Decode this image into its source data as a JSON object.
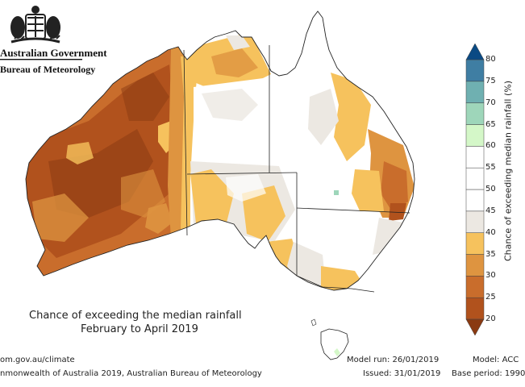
{
  "header": {
    "gov_line1": "Australian Government",
    "gov_line2": "Bureau of Meteorology"
  },
  "title": {
    "line1": "Chance of exceeding the median rainfall",
    "line2": "February to April 2019"
  },
  "footer": {
    "url": "om.gov.au/climate",
    "copyright": "nmonwealth of Australia 2019, Australian Bureau of Meteorology",
    "model_run": "Model run: 26/01/2019",
    "issued": "Issued: 31/01/2019",
    "model": "Model: ACC",
    "base_period": "Base period: 1990"
  },
  "legend": {
    "label": "Chance of exceeding median rainfall (%)",
    "ticks": [
      "80",
      "75",
      "70",
      "65",
      "60",
      "55",
      "50",
      "45",
      "40",
      "35",
      "30",
      "25",
      "20"
    ],
    "bands": [
      {
        "range": "<20",
        "color": "#8a3a12"
      },
      {
        "range": "20-25",
        "color": "#b1521d"
      },
      {
        "range": "25-30",
        "color": "#c96d2c"
      },
      {
        "range": "30-35",
        "color": "#de9440"
      },
      {
        "range": "35-40",
        "color": "#f6c25d"
      },
      {
        "range": "40-45",
        "color": "#ece8e2"
      },
      {
        "range": "45-50",
        "color": "#ffffff"
      },
      {
        "range": "50-55",
        "color": "#ffffff"
      },
      {
        "range": "55-60",
        "color": "#ffffff"
      },
      {
        "range": "60-65",
        "color": "#d4f7c8"
      },
      {
        "range": "65-70",
        "color": "#9ed6ba"
      },
      {
        "range": "70-75",
        "color": "#6fb0b1"
      },
      {
        "range": "75-80",
        "color": "#3f7ea3"
      },
      {
        "range": ">80",
        "color": "#0b4a84"
      }
    ]
  }
}
